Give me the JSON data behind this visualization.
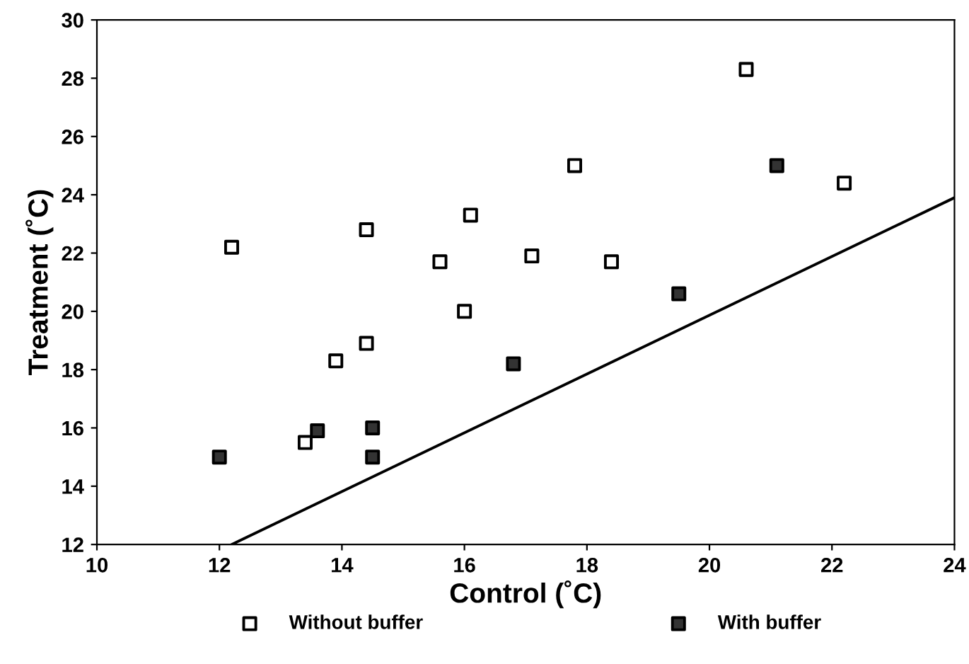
{
  "chart_data": {
    "type": "scatter",
    "xlabel": "Control (˚C)",
    "ylabel": "Treatment (˚C)",
    "xlim": [
      10,
      24
    ],
    "xticks": [
      10,
      12,
      14,
      16,
      18,
      20,
      22,
      24
    ],
    "ylim": [
      12,
      30
    ],
    "yticks": [
      12,
      14,
      16,
      18,
      20,
      22,
      24,
      26,
      28,
      30
    ],
    "grid": false,
    "legend": "bottom",
    "series": [
      {
        "name": "Without buffer",
        "color": "#ffffff",
        "marker": "square",
        "x": [
          12.2,
          13.4,
          13.9,
          14.4,
          14.4,
          15.6,
          16.0,
          16.1,
          17.8,
          17.1,
          18.4,
          20.6,
          22.2
        ],
        "values": [
          22.2,
          15.5,
          18.3,
          22.8,
          18.9,
          21.7,
          20.0,
          23.3,
          25.0,
          21.9,
          21.7,
          28.3,
          24.4
        ]
      },
      {
        "name": "With buffer",
        "color": "#333333",
        "marker": "square",
        "x": [
          12.0,
          13.6,
          14.5,
          14.5,
          16.8,
          19.5,
          21.1
        ],
        "values": [
          15.0,
          15.9,
          16.0,
          15.0,
          18.2,
          20.6,
          25.0
        ]
      },
      {
        "type": "line",
        "color": "#000000",
        "marker": "none",
        "x": [
          12.2,
          24
        ],
        "values": [
          12,
          23.9
        ]
      }
    ]
  }
}
